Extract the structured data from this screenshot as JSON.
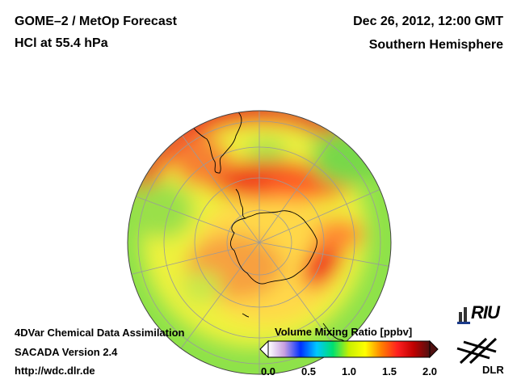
{
  "header": {
    "title_line1": "GOME–2 / MetOp Forecast",
    "title_line2": "HCl at 55.4 hPa",
    "datetime": "Dec 26, 2012, 12:00 GMT",
    "region": "Southern Hemisphere"
  },
  "footer": {
    "line1": "4DVar Chemical Data Assimilation",
    "line2": "SACADA Version 2.4",
    "line3": "http://wdc.dlr.de"
  },
  "colorbar": {
    "title": "Volume Mixing Ratio [ppbv]",
    "ticks": [
      "0.0",
      "0.5",
      "1.0",
      "1.5",
      "2.0"
    ],
    "min": 0.0,
    "max": 2.0,
    "stops": [
      "#ffffff",
      "#c8a0e0",
      "#0030ff",
      "#00c8ff",
      "#00e070",
      "#c8f000",
      "#ffff00",
      "#ff8000",
      "#ff2020",
      "#c00000",
      "#501010"
    ]
  },
  "logos": {
    "riu_text": "RIU",
    "dlr_text": "DLR"
  }
}
